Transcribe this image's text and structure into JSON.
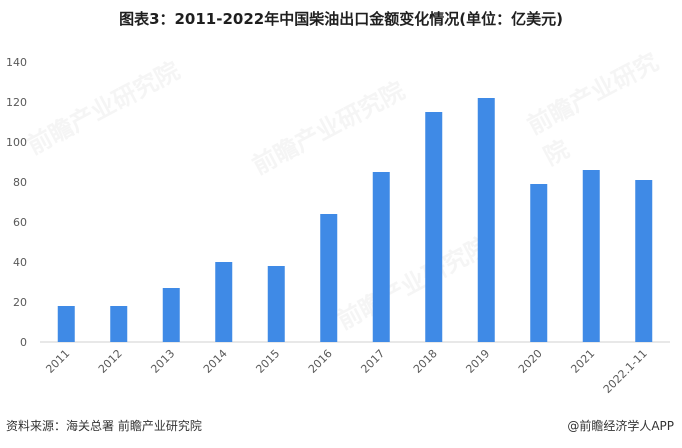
{
  "page": {
    "source": "资料来源：海关总署 前瞻产业研究院",
    "brand": "@前瞻经济学人APP",
    "watermark_text": "前瞻产业研究院"
  },
  "chart_data": {
    "type": "bar",
    "title": "图表3：2011-2022年中国柴油出口金额变化情况(单位：亿美元)",
    "xlabel": "",
    "ylabel": "",
    "categories": [
      "2011",
      "2012",
      "2013",
      "2014",
      "2015",
      "2016",
      "2017",
      "2018",
      "2019",
      "2020",
      "2021",
      "2022.1-11"
    ],
    "values": [
      18,
      18,
      27,
      40,
      38,
      64,
      85,
      115,
      122,
      79,
      86,
      81
    ],
    "ylim": [
      0,
      140
    ],
    "yticks": [
      0,
      20,
      40,
      60,
      80,
      100,
      120,
      140
    ],
    "grid": false,
    "legend": "none",
    "colors": {
      "bar": "#3f8ae6",
      "axis": "#d0d0d0",
      "tick_text": "#595959"
    }
  }
}
